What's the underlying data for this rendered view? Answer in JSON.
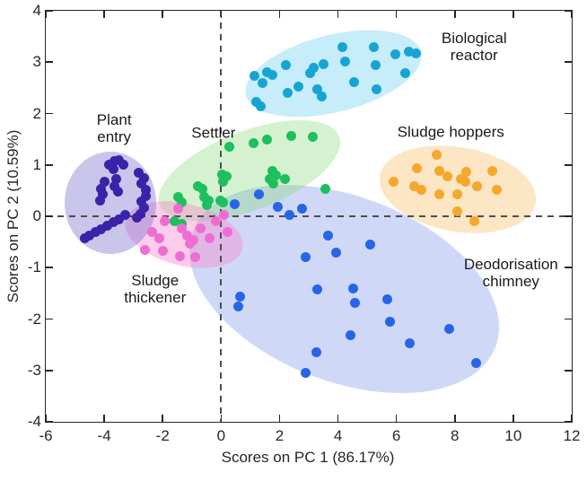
{
  "figure_title": "",
  "colors": {
    "axis": "#262626",
    "tick_text": "#262626",
    "annotation_text": "#1a1a1a",
    "dashed_reference_line": "#4d4d4d",
    "background": "#ffffff"
  },
  "chart_data": {
    "type": "scatter",
    "title": "",
    "xlabel": "Scores on PC 1 (86.17%)",
    "ylabel": "Scores on PC 2 (10.59%)",
    "xlim": [
      -6,
      12
    ],
    "ylim": [
      -4,
      4
    ],
    "xticks": [
      -6,
      -4,
      -2,
      0,
      2,
      4,
      6,
      8,
      10,
      12
    ],
    "yticks": [
      -4,
      -3,
      -2,
      -1,
      0,
      1,
      2,
      3,
      4
    ],
    "grid": false,
    "reference_lines": [
      {
        "axis": "x",
        "value": 0,
        "style": "dashed"
      },
      {
        "axis": "y",
        "value": 0,
        "style": "dashed"
      }
    ],
    "legend": "none (clusters annotated directly on plot)",
    "series": [
      {
        "name": "Deodorisation chimney",
        "marker_color": "#2765e8",
        "ellipse_fill": "rgba(108,141,232,0.33)",
        "ellipse": {
          "cx": 4.2,
          "cy": -1.42,
          "rx": 5.54,
          "ry": 1.8,
          "rotation_deg": 21
        },
        "label": {
          "lines": [
            "Deodorisation",
            "chimney"
          ],
          "x": 9.92,
          "y": -1.1
        },
        "points": [
          [
            0.48,
            0.23
          ],
          [
            1.28,
            0.42
          ],
          [
            1.95,
            0.19
          ],
          [
            2.35,
            0.02
          ],
          [
            2.78,
            0.14
          ],
          [
            3.67,
            -0.37
          ],
          [
            3.93,
            -0.7
          ],
          [
            2.88,
            -0.8
          ],
          [
            5.1,
            -0.55
          ],
          [
            0.65,
            -1.56
          ],
          [
            0.6,
            -1.75
          ],
          [
            3.28,
            -1.42
          ],
          [
            4.51,
            -1.41
          ],
          [
            4.58,
            -1.68
          ],
          [
            5.68,
            -1.62
          ],
          [
            5.79,
            -2.06
          ],
          [
            4.44,
            -2.31
          ],
          [
            6.45,
            -2.48
          ],
          [
            7.8,
            -2.2
          ],
          [
            3.27,
            -2.64
          ],
          [
            2.9,
            -3.05
          ],
          [
            8.72,
            -2.85
          ]
        ]
      },
      {
        "name": "Biological reactor",
        "marker_color": "#17a4d4",
        "ellipse_fill": "rgba(84,199,238,0.32)",
        "ellipse": {
          "cx": 3.83,
          "cy": 2.78,
          "rx": 3.08,
          "ry": 0.75,
          "rotation_deg": -14
        },
        "label": {
          "lines": [
            "Biological",
            "reactor"
          ],
          "x": 8.66,
          "y": 3.3
        },
        "points": [
          [
            1.14,
            2.73
          ],
          [
            1.42,
            2.6
          ],
          [
            1.57,
            2.8
          ],
          [
            1.76,
            2.75
          ],
          [
            1.2,
            2.22
          ],
          [
            1.36,
            2.14
          ],
          [
            2.22,
            2.94
          ],
          [
            2.28,
            2.41
          ],
          [
            2.65,
            2.52
          ],
          [
            3.06,
            2.78
          ],
          [
            3.17,
            2.89
          ],
          [
            3.52,
            2.96
          ],
          [
            4.14,
            3.3
          ],
          [
            4.23,
            3.02
          ],
          [
            3.3,
            2.47
          ],
          [
            3.46,
            2.33
          ],
          [
            4.54,
            2.61
          ],
          [
            5.22,
            3.29
          ],
          [
            5.28,
            2.94
          ],
          [
            5.31,
            2.47
          ],
          [
            5.97,
            3.16
          ],
          [
            6.43,
            3.2
          ],
          [
            6.68,
            3.17
          ],
          [
            6.3,
            2.78
          ]
        ]
      },
      {
        "name": "Sludge hoppers",
        "marker_color": "#f5a72e",
        "ellipse_fill": "rgba(246,172,60,0.30)",
        "ellipse": {
          "cx": 8.11,
          "cy": 0.52,
          "rx": 2.71,
          "ry": 0.82,
          "rotation_deg": 10
        },
        "label": {
          "lines": [
            "Sludge hoppers"
          ],
          "x": 7.86,
          "y": 1.64
        },
        "points": [
          [
            5.9,
            0.68
          ],
          [
            6.7,
            0.94
          ],
          [
            6.6,
            0.59
          ],
          [
            6.85,
            0.51
          ],
          [
            7.38,
            1.19
          ],
          [
            7.47,
            0.89
          ],
          [
            7.75,
            0.77
          ],
          [
            7.47,
            0.42
          ],
          [
            8.2,
            0.72
          ],
          [
            8.36,
            0.68
          ],
          [
            8.4,
            0.87
          ],
          [
            8.77,
            0.58
          ],
          [
            9.29,
            0.89
          ],
          [
            9.44,
            0.51
          ],
          [
            8.09,
            0.42
          ],
          [
            8.09,
            0.1
          ],
          [
            8.67,
            -0.1
          ]
        ]
      },
      {
        "name": "Settler",
        "marker_color": "#1dbf5e",
        "ellipse_fill": "rgba(126,217,112,0.33)",
        "ellipse": {
          "cx": 0.97,
          "cy": 0.89,
          "rx": 3.29,
          "ry": 0.77,
          "rotation_deg": -21
        },
        "label": {
          "lines": [
            "Settler"
          ],
          "x": -0.26,
          "y": 1.63
        },
        "points": [
          [
            0.28,
            1.36
          ],
          [
            1.11,
            1.42
          ],
          [
            1.57,
            1.5
          ],
          [
            2.4,
            1.57
          ],
          [
            3.14,
            1.55
          ],
          [
            0.03,
            0.82
          ],
          [
            0.2,
            0.77
          ],
          [
            0.07,
            0.68
          ],
          [
            1.76,
            0.89
          ],
          [
            1.89,
            0.8
          ],
          [
            1.67,
            0.72
          ],
          [
            1.78,
            0.64
          ],
          [
            2.19,
            0.72
          ],
          [
            3.57,
            0.54
          ],
          [
            -0.8,
            0.58
          ],
          [
            -0.64,
            0.53
          ],
          [
            -1.48,
            0.37
          ],
          [
            -1.36,
            0.27
          ],
          [
            -0.59,
            0.37
          ],
          [
            -0.43,
            0.31
          ],
          [
            -0.49,
            0.22
          ],
          [
            -0.03,
            0.31
          ],
          [
            0.07,
            0.27
          ],
          [
            -1.6,
            -0.1
          ],
          [
            -1.35,
            -0.15
          ]
        ]
      },
      {
        "name": "Sludge thickener",
        "marker_color": "#ef6dd3",
        "ellipse_fill": "rgba(248,133,206,0.42)",
        "ellipse": {
          "cx": -1.28,
          "cy": -0.35,
          "rx": 2.06,
          "ry": 0.6,
          "rotation_deg": 14
        },
        "label": {
          "lines": [
            "Sludge",
            "thickener"
          ],
          "x": -2.26,
          "y": -1.42
        },
        "points": [
          [
            -1.48,
            0.14
          ],
          [
            -1.94,
            -0.1
          ],
          [
            -2.35,
            -0.3
          ],
          [
            -2.1,
            -0.42
          ],
          [
            -2.6,
            -0.65
          ],
          [
            -1.98,
            -0.68
          ],
          [
            -1.36,
            -0.24
          ],
          [
            -1.17,
            -0.38
          ],
          [
            -0.96,
            -0.47
          ],
          [
            -0.71,
            -0.24
          ],
          [
            -0.4,
            -0.42
          ],
          [
            -1.42,
            -0.77
          ],
          [
            -1.06,
            -0.54
          ],
          [
            -0.9,
            -0.8
          ],
          [
            -0.19,
            -0.1
          ],
          [
            0.1,
            0.02
          ],
          [
            0.22,
            -0.3
          ]
        ]
      },
      {
        "name": "Plant entry",
        "marker_color": "#3a23a8",
        "ellipse_fill": "rgba(129,116,208,0.42)",
        "ellipse": {
          "cx": -3.8,
          "cy": 0.26,
          "rx": 1.57,
          "ry": 1.0,
          "rotation_deg": 0
        },
        "label": {
          "lines": [
            "Plant",
            "entry"
          ],
          "x": -3.66,
          "y": 1.72
        },
        "points": [
          [
            -3.83,
            1.01
          ],
          [
            -3.64,
            1.07
          ],
          [
            -3.49,
            1.1
          ],
          [
            -3.33,
            1.01
          ],
          [
            -3.67,
            0.92
          ],
          [
            -2.81,
            0.84
          ],
          [
            -2.65,
            0.75
          ],
          [
            -2.72,
            0.64
          ],
          [
            -3.98,
            0.68
          ],
          [
            -4.1,
            0.54
          ],
          [
            -4.04,
            0.42
          ],
          [
            -4.14,
            0.31
          ],
          [
            -3.58,
            0.72
          ],
          [
            -3.64,
            0.58
          ],
          [
            -3.52,
            0.48
          ],
          [
            -2.56,
            0.51
          ],
          [
            -2.59,
            0.4
          ],
          [
            -2.72,
            0.28
          ],
          [
            -2.65,
            0.16
          ],
          [
            -2.75,
            0.05
          ],
          [
            -2.87,
            -0.03
          ],
          [
            -3.27,
            0.02
          ],
          [
            -3.5,
            -0.06
          ],
          [
            -3.67,
            -0.12
          ],
          [
            -3.89,
            -0.19
          ],
          [
            -4.1,
            -0.25
          ],
          [
            -4.29,
            -0.31
          ],
          [
            -4.51,
            -0.37
          ],
          [
            -4.66,
            -0.43
          ]
        ]
      }
    ]
  }
}
